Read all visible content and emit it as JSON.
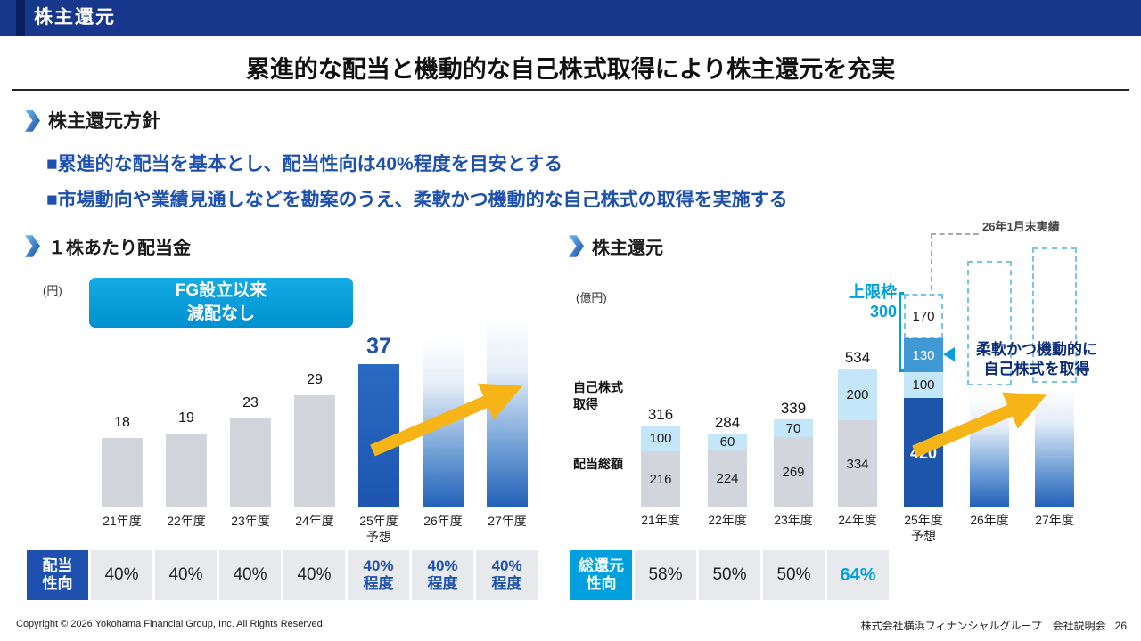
{
  "colors": {
    "header_bg": "#17378c",
    "header_accent": "#0a1f60",
    "accent_blue": "#1d50af",
    "cyan": "#00a0df",
    "bar_gray": "#d2d6dc",
    "bar_blue": "#1d55b0",
    "stack_light": "#c3e6f8",
    "stack_mid": "#4098d5",
    "stack_dark": "#1d55aa",
    "dashed_blue": "#79c3ec",
    "cell_gray": "#e8e9ec",
    "navy_text": "#0c2d78",
    "arrow_yellow": "#f7b416"
  },
  "header": {
    "title": "株主還元"
  },
  "slide_title": "累進的な配当と機動的な自己株式取得により株主還元を充実",
  "policy": {
    "heading": "株主還元方針",
    "bullet1": "■累進的な配当を基本とし、配当性向は40%程度を目安とする",
    "bullet2": "■市場動向や業績見通しなどを勘案のうえ、柔軟かつ機動的な自己株式の取得を実施する"
  },
  "dividend_chart": {
    "heading": "１株あたり配当金",
    "unit": "(円)",
    "badge": "FG設立以来\n減配なし",
    "bars": [
      {
        "category": "21年度",
        "value": 18,
        "style": "gray"
      },
      {
        "category": "22年度",
        "value": 19,
        "style": "gray"
      },
      {
        "category": "23年度",
        "value": 23,
        "style": "gray"
      },
      {
        "category": "24年度",
        "value": 29,
        "style": "gray"
      },
      {
        "category": "25年度\n予想",
        "value": 37,
        "style": "blue",
        "emphasis": true
      },
      {
        "category": "26年度",
        "value": null,
        "style": "grad"
      },
      {
        "category": "27年度",
        "value": null,
        "style": "grad"
      }
    ],
    "table": {
      "header": "配当\n性向",
      "cells": [
        {
          "text": "40%"
        },
        {
          "text": "40%"
        },
        {
          "text": "40%"
        },
        {
          "text": "40%"
        },
        {
          "text": "40%\n程度",
          "style": "blue"
        },
        {
          "text": "40%\n程度",
          "style": "blue"
        },
        {
          "text": "40%\n程度",
          "style": "blue"
        }
      ]
    }
  },
  "return_chart": {
    "heading": "株主還元",
    "unit": "(億円)",
    "label_buyback": "自己株式\n取得",
    "label_dividend": "配当総額",
    "cap_label": "上限枠\n300",
    "actual_note": "26年1月末実績",
    "flex_note": "柔軟かつ機動的に\n自己株式を取得",
    "bars": [
      {
        "category": "21年度",
        "total": "316",
        "segments": [
          {
            "value": 216,
            "style": "gray"
          },
          {
            "value": 100,
            "style": "light"
          }
        ]
      },
      {
        "category": "22年度",
        "total": "284",
        "segments": [
          {
            "value": 224,
            "style": "gray"
          },
          {
            "value": 60,
            "style": "light"
          }
        ]
      },
      {
        "category": "23年度",
        "total": "339",
        "segments": [
          {
            "value": 269,
            "style": "gray"
          },
          {
            "value": 70,
            "style": "light"
          }
        ]
      },
      {
        "category": "24年度",
        "total": "534",
        "segments": [
          {
            "value": 334,
            "style": "gray"
          },
          {
            "value": 200,
            "style": "light"
          }
        ]
      },
      {
        "category": "25年度\n予想",
        "segments": [
          {
            "value": 420,
            "style": "dark"
          },
          {
            "value": 100,
            "style": "light"
          },
          {
            "value": 130,
            "style": "mid"
          },
          {
            "value": 170,
            "style": "dashed"
          }
        ]
      },
      {
        "category": "26年度",
        "future": true
      },
      {
        "category": "27年度",
        "future": true
      }
    ],
    "table": {
      "header": "総還元\n性向",
      "cells": [
        {
          "text": "58%"
        },
        {
          "text": "50%"
        },
        {
          "text": "50%"
        },
        {
          "text": "64%",
          "style": "cyan"
        }
      ]
    }
  },
  "chart_data": [
    {
      "type": "bar",
      "title": "１株あたり配当金",
      "ylabel": "円",
      "categories": [
        "21年度",
        "22年度",
        "23年度",
        "24年度",
        "25年度予想",
        "26年度",
        "27年度"
      ],
      "values": [
        18,
        19,
        23,
        29,
        37,
        null,
        null
      ],
      "annotations": [
        "FG設立以来減配なし"
      ],
      "payout_ratio_row": {
        "label": "配当性向",
        "values": [
          "40%",
          "40%",
          "40%",
          "40%",
          "40%程度",
          "40%程度",
          "40%程度"
        ]
      }
    },
    {
      "type": "stacked-bar",
      "title": "株主還元",
      "ylabel": "億円",
      "categories": [
        "21年度",
        "22年度",
        "23年度",
        "24年度",
        "25年度予想",
        "26年度",
        "27年度"
      ],
      "series": [
        {
          "name": "配当総額",
          "values": [
            216,
            224,
            269,
            334
          ]
        },
        {
          "name": "自己株式取得",
          "values": [
            100,
            60,
            70,
            200
          ]
        }
      ],
      "totals": [
        316,
        284,
        339,
        534
      ],
      "fy25_segments": {
        "values": [
          420,
          100,
          130,
          170
        ],
        "cap": 300
      },
      "annotations": [
        "上限枠300",
        "26年1月末実績",
        "柔軟かつ機動的に自己株式を取得"
      ],
      "total_return_ratio_row": {
        "label": "総還元性向",
        "values": [
          "58%",
          "50%",
          "50%",
          "64%"
        ]
      }
    }
  ],
  "footer": {
    "copyright": "Copyright © 2026 Yokohama Financial Group, Inc. All Rights Reserved.",
    "company": "株式会社横浜フィナンシャルグループ　会社説明会",
    "page": "26"
  }
}
